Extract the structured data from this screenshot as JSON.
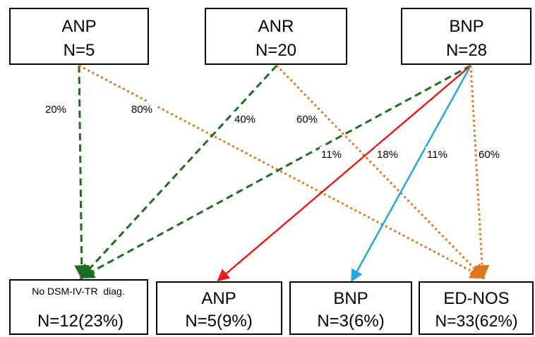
{
  "top_nodes": [
    {
      "label": "ANP",
      "n": "N=5"
    },
    {
      "label": "ANR",
      "n": "N=20"
    },
    {
      "label": "BNP",
      "n": "N=28"
    }
  ],
  "bottom_nodes": [
    {
      "label": "No DSM-IV-TR  diag.",
      "n": "N=12(23%)"
    },
    {
      "label": "ANP",
      "n": "N=5(9%)"
    },
    {
      "label": "BNP",
      "n": "N=3(6%)"
    },
    {
      "label": "ED-NOS",
      "n": "N=33(62%)"
    }
  ],
  "edges": [
    {
      "from": "ANP",
      "to": "No DSM-IV-TR diag.",
      "percent": "20%",
      "color": "#1f6b1f",
      "style": "dashed"
    },
    {
      "from": "ANP",
      "to": "ED-NOS",
      "percent": "80%",
      "color": "#e0761e",
      "style": "dotted"
    },
    {
      "from": "ANR",
      "to": "No DSM-IV-TR diag.",
      "percent": "40%",
      "color": "#1f6b1f",
      "style": "dashed"
    },
    {
      "from": "ANR",
      "to": "ED-NOS",
      "percent": "60%",
      "color": "#e0761e",
      "style": "dotted"
    },
    {
      "from": "BNP",
      "to": "No DSM-IV-TR diag.",
      "percent": "11%",
      "color": "#1f6b1f",
      "style": "dashed"
    },
    {
      "from": "BNP",
      "to": "ANP",
      "percent": "18%",
      "color": "#e81c1c",
      "style": "solid"
    },
    {
      "from": "BNP",
      "to": "BNP",
      "percent": "11%",
      "color": "#1fa8e0",
      "style": "solid"
    },
    {
      "from": "BNP",
      "to": "ED-NOS",
      "percent": "60%",
      "color": "#e0761e",
      "style": "dotted"
    }
  ]
}
